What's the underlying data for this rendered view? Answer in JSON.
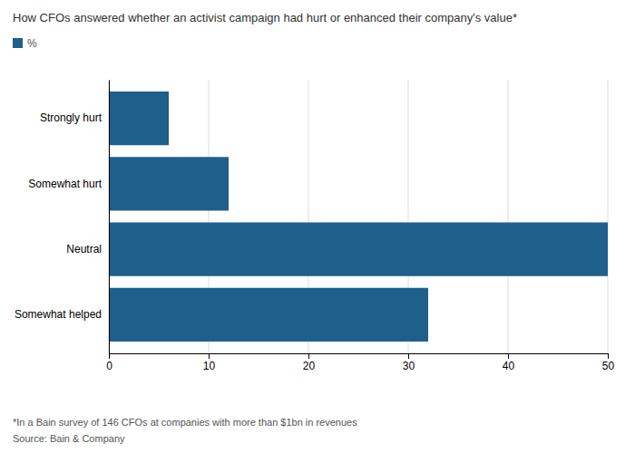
{
  "chart_data": {
    "type": "bar",
    "orientation": "horizontal",
    "title": "How CFOs answered whether an activist campaign had hurt or enhanced their company's value*",
    "categories": [
      "Somewhat helped",
      "Neutral",
      "Somewhat hurt",
      "Strongly hurt"
    ],
    "series": [
      {
        "name": "%",
        "color": "#1f5f8b",
        "values": [
          32,
          50,
          12,
          6
        ]
      }
    ],
    "xlim": [
      0,
      50
    ],
    "xticks": [
      0,
      10,
      20,
      30,
      40,
      50
    ],
    "grid": true,
    "legend": "upper left",
    "annotations": [
      "*In a Bain survey of 146 CFOs at companies with more than $1bn in revenues",
      "Source: Bain & Company"
    ]
  }
}
